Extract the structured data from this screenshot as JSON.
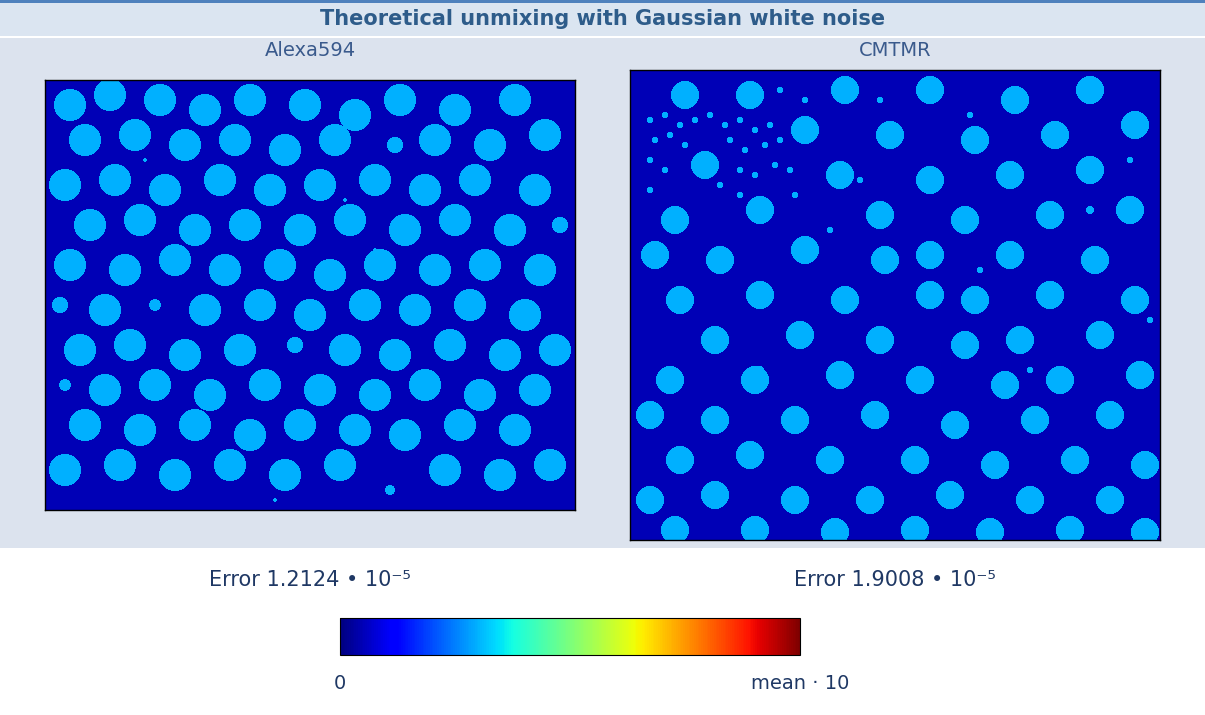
{
  "chart_data": {
    "type": "heatmap",
    "title": "Theoretical unmixing with Gaussian white noise",
    "tick_labels": false,
    "colorbar": {
      "range": [
        0,
        10
      ],
      "ticks": [
        {
          "value": 0,
          "label": "0"
        },
        {
          "value": 10,
          "label": "mean · 10"
        }
      ]
    },
    "panels": [
      {
        "label": "Alexa594",
        "error": "Error 1.2124 • 10⁻⁵",
        "xlim": [
          0,
          530
        ],
        "ylim": [
          430,
          0
        ],
        "background": 0.5,
        "circle_value": 3.0,
        "circles": [
          [
            25,
            25,
            16
          ],
          [
            65,
            15,
            16
          ],
          [
            115,
            20,
            16
          ],
          [
            160,
            30,
            16
          ],
          [
            205,
            20,
            16
          ],
          [
            260,
            25,
            16
          ],
          [
            310,
            35,
            16
          ],
          [
            355,
            20,
            16
          ],
          [
            410,
            30,
            16
          ],
          [
            470,
            20,
            16
          ],
          [
            40,
            60,
            16
          ],
          [
            90,
            55,
            16
          ],
          [
            140,
            65,
            16
          ],
          [
            190,
            60,
            16
          ],
          [
            240,
            70,
            16
          ],
          [
            290,
            60,
            16
          ],
          [
            350,
            65,
            8
          ],
          [
            390,
            60,
            16
          ],
          [
            445,
            65,
            16
          ],
          [
            500,
            55,
            16
          ],
          [
            20,
            105,
            16
          ],
          [
            70,
            100,
            16
          ],
          [
            120,
            110,
            16
          ],
          [
            175,
            100,
            16
          ],
          [
            225,
            110,
            16
          ],
          [
            275,
            105,
            16
          ],
          [
            330,
            100,
            16
          ],
          [
            380,
            110,
            16
          ],
          [
            430,
            100,
            16
          ],
          [
            490,
            110,
            16
          ],
          [
            45,
            145,
            16
          ],
          [
            95,
            140,
            16
          ],
          [
            150,
            150,
            16
          ],
          [
            200,
            145,
            16
          ],
          [
            255,
            150,
            16
          ],
          [
            305,
            140,
            16
          ],
          [
            360,
            150,
            16
          ],
          [
            410,
            140,
            16
          ],
          [
            465,
            150,
            16
          ],
          [
            515,
            145,
            8
          ],
          [
            25,
            185,
            16
          ],
          [
            80,
            190,
            16
          ],
          [
            130,
            180,
            16
          ],
          [
            180,
            190,
            16
          ],
          [
            235,
            185,
            16
          ],
          [
            285,
            195,
            16
          ],
          [
            335,
            185,
            16
          ],
          [
            390,
            190,
            16
          ],
          [
            440,
            185,
            16
          ],
          [
            495,
            190,
            16
          ],
          [
            15,
            225,
            8
          ],
          [
            60,
            230,
            16
          ],
          [
            110,
            225,
            6
          ],
          [
            160,
            230,
            16
          ],
          [
            215,
            225,
            16
          ],
          [
            265,
            235,
            16
          ],
          [
            320,
            225,
            16
          ],
          [
            370,
            230,
            16
          ],
          [
            425,
            225,
            16
          ],
          [
            480,
            235,
            16
          ],
          [
            35,
            270,
            16
          ],
          [
            85,
            265,
            16
          ],
          [
            140,
            275,
            16
          ],
          [
            195,
            270,
            16
          ],
          [
            250,
            265,
            8
          ],
          [
            300,
            270,
            16
          ],
          [
            350,
            275,
            16
          ],
          [
            405,
            265,
            16
          ],
          [
            460,
            275,
            16
          ],
          [
            510,
            270,
            16
          ],
          [
            20,
            305,
            6
          ],
          [
            60,
            310,
            16
          ],
          [
            110,
            305,
            16
          ],
          [
            165,
            315,
            16
          ],
          [
            220,
            305,
            16
          ],
          [
            275,
            310,
            16
          ],
          [
            330,
            315,
            16
          ],
          [
            380,
            305,
            16
          ],
          [
            435,
            315,
            16
          ],
          [
            490,
            310,
            16
          ],
          [
            40,
            345,
            16
          ],
          [
            95,
            350,
            16
          ],
          [
            150,
            345,
            16
          ],
          [
            205,
            355,
            16
          ],
          [
            255,
            345,
            16
          ],
          [
            310,
            350,
            16
          ],
          [
            360,
            355,
            16
          ],
          [
            415,
            345,
            16
          ],
          [
            470,
            350,
            16
          ],
          [
            20,
            390,
            16
          ],
          [
            75,
            385,
            16
          ],
          [
            130,
            395,
            16
          ],
          [
            185,
            385,
            16
          ],
          [
            240,
            395,
            16
          ],
          [
            295,
            385,
            16
          ],
          [
            345,
            410,
            5
          ],
          [
            400,
            390,
            16
          ],
          [
            455,
            395,
            16
          ],
          [
            505,
            385,
            16
          ],
          [
            100,
            80,
            2
          ],
          [
            300,
            120,
            2
          ],
          [
            330,
            170,
            2
          ],
          [
            230,
            420,
            2
          ]
        ]
      },
      {
        "label": "CMTMR",
        "error": "Error 1.9008 • 10⁻⁵",
        "xlim": [
          0,
          530
        ],
        "ylim": [
          470,
          0
        ],
        "background": 0.5,
        "circle_value": 3.0,
        "circles": [
          [
            55,
            25,
            14
          ],
          [
            120,
            25,
            14
          ],
          [
            215,
            20,
            14
          ],
          [
            300,
            20,
            14
          ],
          [
            385,
            30,
            14
          ],
          [
            460,
            20,
            14
          ],
          [
            505,
            55,
            14
          ],
          [
            175,
            60,
            14
          ],
          [
            260,
            65,
            14
          ],
          [
            345,
            70,
            14
          ],
          [
            425,
            65,
            14
          ],
          [
            75,
            95,
            14
          ],
          [
            210,
            105,
            14
          ],
          [
            300,
            110,
            14
          ],
          [
            380,
            105,
            14
          ],
          [
            460,
            100,
            14
          ],
          [
            45,
            150,
            14
          ],
          [
            130,
            140,
            14
          ],
          [
            250,
            145,
            14
          ],
          [
            335,
            150,
            14
          ],
          [
            420,
            145,
            14
          ],
          [
            500,
            140,
            14
          ],
          [
            25,
            185,
            14
          ],
          [
            90,
            190,
            14
          ],
          [
            175,
            180,
            14
          ],
          [
            255,
            190,
            14
          ],
          [
            300,
            185,
            14
          ],
          [
            380,
            185,
            14
          ],
          [
            465,
            190,
            14
          ],
          [
            50,
            230,
            14
          ],
          [
            130,
            225,
            14
          ],
          [
            215,
            230,
            14
          ],
          [
            300,
            225,
            14
          ],
          [
            345,
            230,
            14
          ],
          [
            420,
            225,
            14
          ],
          [
            505,
            230,
            14
          ],
          [
            85,
            270,
            14
          ],
          [
            170,
            265,
            14
          ],
          [
            250,
            270,
            14
          ],
          [
            335,
            275,
            14
          ],
          [
            390,
            270,
            14
          ],
          [
            470,
            265,
            14
          ],
          [
            40,
            310,
            14
          ],
          [
            125,
            310,
            14
          ],
          [
            210,
            305,
            14
          ],
          [
            290,
            310,
            14
          ],
          [
            375,
            315,
            14
          ],
          [
            430,
            310,
            14
          ],
          [
            510,
            305,
            14
          ],
          [
            20,
            345,
            14
          ],
          [
            85,
            350,
            14
          ],
          [
            165,
            350,
            14
          ],
          [
            245,
            345,
            14
          ],
          [
            325,
            355,
            14
          ],
          [
            405,
            350,
            14
          ],
          [
            480,
            345,
            14
          ],
          [
            50,
            390,
            14
          ],
          [
            120,
            385,
            14
          ],
          [
            200,
            390,
            14
          ],
          [
            285,
            390,
            14
          ],
          [
            365,
            395,
            14
          ],
          [
            445,
            390,
            14
          ],
          [
            515,
            395,
            14
          ],
          [
            20,
            430,
            14
          ],
          [
            85,
            425,
            14
          ],
          [
            165,
            430,
            14
          ],
          [
            240,
            430,
            14
          ],
          [
            320,
            425,
            14
          ],
          [
            400,
            430,
            14
          ],
          [
            480,
            430,
            14
          ],
          [
            45,
            460,
            14
          ],
          [
            125,
            460,
            14
          ],
          [
            205,
            462,
            14
          ],
          [
            285,
            460,
            14
          ],
          [
            360,
            462,
            14
          ],
          [
            440,
            460,
            14
          ],
          [
            515,
            462,
            14
          ],
          [
            20,
            50,
            3
          ],
          [
            35,
            45,
            3
          ],
          [
            50,
            55,
            3
          ],
          [
            65,
            50,
            3
          ],
          [
            80,
            45,
            3
          ],
          [
            95,
            55,
            3
          ],
          [
            110,
            50,
            3
          ],
          [
            125,
            60,
            3
          ],
          [
            140,
            55,
            3
          ],
          [
            25,
            70,
            3
          ],
          [
            40,
            65,
            3
          ],
          [
            55,
            75,
            3
          ],
          [
            100,
            70,
            3
          ],
          [
            115,
            80,
            3
          ],
          [
            135,
            75,
            3
          ],
          [
            150,
            70,
            3
          ],
          [
            20,
            90,
            3
          ],
          [
            35,
            100,
            3
          ],
          [
            110,
            100,
            3
          ],
          [
            125,
            105,
            3
          ],
          [
            145,
            95,
            3
          ],
          [
            160,
            100,
            3
          ],
          [
            20,
            120,
            3
          ],
          [
            90,
            115,
            3
          ],
          [
            110,
            125,
            3
          ],
          [
            165,
            125,
            3
          ],
          [
            150,
            20,
            3
          ],
          [
            175,
            30,
            3
          ],
          [
            250,
            30,
            3
          ],
          [
            340,
            45,
            3
          ],
          [
            500,
            90,
            3
          ],
          [
            230,
            110,
            3
          ],
          [
            200,
            160,
            3
          ],
          [
            350,
            200,
            3
          ],
          [
            460,
            140,
            4
          ],
          [
            520,
            250,
            3
          ],
          [
            130,
            300,
            4
          ],
          [
            400,
            300,
            3
          ]
        ]
      }
    ]
  }
}
